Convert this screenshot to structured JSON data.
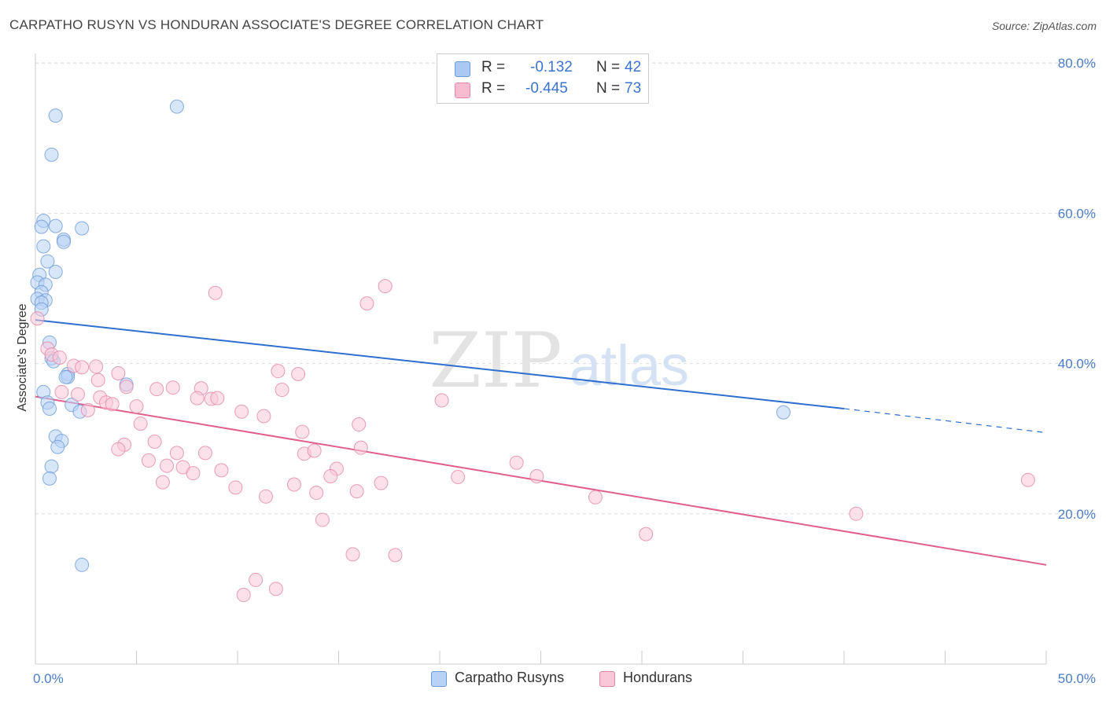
{
  "title": "CARPATHO RUSYN VS HONDURAN ASSOCIATE'S DEGREE CORRELATION CHART",
  "source": "Source: ZipAtlas.com",
  "watermark": {
    "zip": "ZIP",
    "atlas": "atlas"
  },
  "legend": {
    "r_label": "R =",
    "n_label": "N =",
    "rows": [
      {
        "r": "-0.132",
        "n": "42",
        "color": "#a9c8f2",
        "border": "#6a9ad8"
      },
      {
        "r": "-0.445",
        "n": "73",
        "color": "#f7bcd0",
        "border": "#e586a6"
      }
    ]
  },
  "bottom_legend": [
    {
      "label": "Carpatho Rusyns",
      "color": "#b8d2f5",
      "border": "#6a9ad8"
    },
    {
      "label": "Hondurans",
      "color": "#f9c8d8",
      "border": "#e586a6"
    }
  ],
  "chart_data": {
    "type": "scatter",
    "title": "CARPATHO RUSYN VS HONDURAN ASSOCIATE'S DEGREE CORRELATION CHART",
    "xlabel": "",
    "ylabel": "Associate's Degree",
    "xlim": [
      0,
      50
    ],
    "ylim": [
      0,
      84
    ],
    "x_tick_labels": [
      "0.0%",
      "50.0%"
    ],
    "y_ticks": [
      20,
      40,
      60,
      80
    ],
    "y_tick_labels": [
      "20.0%",
      "40.0%",
      "60.0%",
      "80.0%"
    ],
    "grid": true,
    "series": [
      {
        "name": "Carpatho Rusyns",
        "color": "#6a9ad8",
        "fill": "#b8d2f5",
        "r": -0.132,
        "n": 42,
        "trend": {
          "x0": 0,
          "y0": 45.8,
          "x1": 40,
          "y1": 34.0,
          "dash_to_x": 50,
          "dash_to_y": 30.8
        },
        "points": [
          [
            1.0,
            73.0
          ],
          [
            0.8,
            67.8
          ],
          [
            7.0,
            74.2
          ],
          [
            0.4,
            59.0
          ],
          [
            0.3,
            58.2
          ],
          [
            1.0,
            58.3
          ],
          [
            2.3,
            58.0
          ],
          [
            1.4,
            56.5
          ],
          [
            1.4,
            56.2
          ],
          [
            0.4,
            55.6
          ],
          [
            0.6,
            53.6
          ],
          [
            1.0,
            52.2
          ],
          [
            0.2,
            51.8
          ],
          [
            0.1,
            50.8
          ],
          [
            0.5,
            50.5
          ],
          [
            0.3,
            49.5
          ],
          [
            0.1,
            48.6
          ],
          [
            0.5,
            48.4
          ],
          [
            0.3,
            48.1
          ],
          [
            0.3,
            47.2
          ],
          [
            0.7,
            42.8
          ],
          [
            0.8,
            40.7
          ],
          [
            0.9,
            40.3
          ],
          [
            1.6,
            38.6
          ],
          [
            1.6,
            38.2
          ],
          [
            1.5,
            38.2
          ],
          [
            4.5,
            37.2
          ],
          [
            0.4,
            36.2
          ],
          [
            0.6,
            34.8
          ],
          [
            0.7,
            34.0
          ],
          [
            1.8,
            34.5
          ],
          [
            2.2,
            33.6
          ],
          [
            1.0,
            30.3
          ],
          [
            1.3,
            29.7
          ],
          [
            1.1,
            28.9
          ],
          [
            0.8,
            26.3
          ],
          [
            0.7,
            24.7
          ],
          [
            2.3,
            13.2
          ],
          [
            37.0,
            33.5
          ]
        ]
      },
      {
        "name": "Hondurans",
        "color": "#e586a6",
        "fill": "#f9c8d8",
        "r": -0.445,
        "n": 73,
        "trend": {
          "x0": 0,
          "y0": 35.6,
          "x1": 50,
          "y1": 13.2
        },
        "points": [
          [
            0.1,
            46.0
          ],
          [
            0.6,
            42.0
          ],
          [
            0.8,
            41.2
          ],
          [
            1.2,
            40.8
          ],
          [
            1.9,
            39.7
          ],
          [
            2.3,
            39.5
          ],
          [
            3.0,
            39.6
          ],
          [
            4.1,
            38.7
          ],
          [
            1.3,
            36.2
          ],
          [
            2.1,
            35.9
          ],
          [
            3.1,
            37.8
          ],
          [
            4.5,
            36.9
          ],
          [
            6.0,
            36.6
          ],
          [
            6.8,
            36.8
          ],
          [
            8.2,
            36.7
          ],
          [
            8.0,
            35.4
          ],
          [
            8.7,
            35.3
          ],
          [
            9.0,
            35.4
          ],
          [
            3.2,
            35.5
          ],
          [
            3.5,
            34.8
          ],
          [
            3.8,
            34.6
          ],
          [
            5.0,
            34.3
          ],
          [
            2.6,
            33.8
          ],
          [
            10.2,
            33.6
          ],
          [
            11.3,
            33.0
          ],
          [
            12.2,
            36.5
          ],
          [
            12.0,
            39.0
          ],
          [
            13.0,
            38.6
          ],
          [
            13.2,
            30.9
          ],
          [
            5.2,
            32.0
          ],
          [
            4.4,
            29.2
          ],
          [
            4.1,
            28.6
          ],
          [
            5.9,
            29.6
          ],
          [
            7.0,
            28.1
          ],
          [
            8.4,
            28.1
          ],
          [
            13.3,
            28.0
          ],
          [
            13.8,
            28.4
          ],
          [
            16.1,
            28.8
          ],
          [
            16.0,
            31.9
          ],
          [
            5.6,
            27.1
          ],
          [
            6.5,
            26.4
          ],
          [
            7.3,
            26.2
          ],
          [
            7.8,
            25.4
          ],
          [
            9.2,
            25.8
          ],
          [
            14.9,
            26.0
          ],
          [
            14.6,
            25.0
          ],
          [
            6.3,
            24.2
          ],
          [
            9.9,
            23.5
          ],
          [
            12.8,
            23.9
          ],
          [
            13.9,
            22.8
          ],
          [
            15.9,
            23.0
          ],
          [
            17.1,
            24.1
          ],
          [
            11.4,
            22.3
          ],
          [
            20.9,
            24.9
          ],
          [
            23.8,
            26.8
          ],
          [
            24.8,
            25.0
          ],
          [
            27.7,
            22.2
          ],
          [
            14.2,
            19.2
          ],
          [
            15.7,
            14.6
          ],
          [
            17.8,
            14.5
          ],
          [
            30.2,
            17.3
          ],
          [
            10.9,
            11.2
          ],
          [
            11.9,
            10.0
          ],
          [
            10.3,
            9.2
          ],
          [
            8.9,
            49.4
          ],
          [
            16.4,
            48.0
          ],
          [
            17.3,
            50.3
          ],
          [
            20.1,
            35.1
          ],
          [
            40.6,
            20.0
          ],
          [
            49.1,
            24.5
          ]
        ]
      }
    ]
  }
}
